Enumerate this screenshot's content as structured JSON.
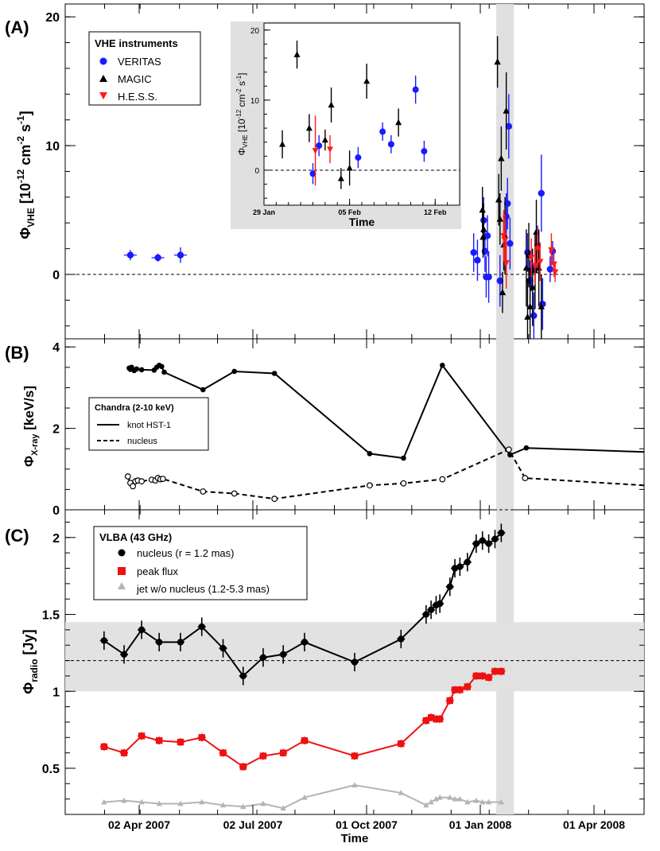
{
  "colors": {
    "veritas": "#1a1aff",
    "magic": "#000000",
    "hess": "#ff1a1a",
    "peak": "#ee1111",
    "jet": "#b4b4b4",
    "band": "#e0e0e0"
  },
  "panel_a": {
    "label": "(A)",
    "legend_title": "VHE instruments",
    "inset_xlabel": "Time",
    "inset_xticks": [
      "29 Jan",
      "05 Feb",
      "12 Feb"
    ]
  },
  "panel_b": {
    "label": "(B)",
    "legend_title": "Chandra (2-10 keV)",
    "legend_items": [
      "knot HST-1",
      "nucleus"
    ]
  },
  "panel_c": {
    "label": "(C)",
    "legend_title": "VLBA (43 GHz)",
    "legend_items": [
      "nucleus (r = 1.2 mas)",
      "peak flux",
      "jet w/o nucleus (1.2-5.3 mas)"
    ]
  },
  "x_axis": {
    "label": "Time",
    "range_days": [
      -77,
      70
    ],
    "tick_labels": [
      "02 Apr 2007",
      "02 Jul 2007",
      "01 Oct 2007",
      "01 Jan 2008",
      "01 Apr 2008"
    ],
    "highlight_band_days": [
      -48,
      -34
    ]
  },
  "chart_data": [
    {
      "type": "scatter",
      "panel": "A",
      "ylabel": "Φ_VHE [10^-12 cm^-2 s^-1]",
      "ylim": [
        -5,
        21
      ],
      "yticks": [
        0,
        10,
        20
      ],
      "reference_line": 0,
      "series": [
        {
          "name": "VERITAS",
          "marker": "circle",
          "points": [
            [
              -340,
              1.5,
              0.4
            ],
            [
              -318,
              1.3,
              0.3
            ],
            [
              -300,
              1.5,
              0.6
            ],
            [
              -66,
              1.7,
              1.5
            ],
            [
              -63,
              1.1,
              1.6
            ],
            [
              -58,
              4.2,
              1.8
            ],
            [
              -57,
              1.8,
              1.6
            ],
            [
              -56,
              -0.2,
              1.6
            ],
            [
              -55,
              3.0,
              1.6
            ],
            [
              -54,
              -0.2,
              2.0
            ],
            [
              -45,
              -0.5,
              2.0
            ],
            [
              -40,
              4.5,
              1.8
            ],
            [
              -39,
              5.5,
              2.0
            ],
            [
              -38,
              11.5,
              2.5
            ],
            [
              -37,
              2.4,
              2.0
            ],
            [
              -23,
              1.7,
              1.5
            ],
            [
              -21,
              -0.5,
              1.6
            ],
            [
              -20,
              0.3,
              1.6
            ],
            [
              -18,
              -3.2,
              1.8
            ],
            [
              -17,
              0.6,
              1.6
            ],
            [
              -15,
              2.2,
              1.6
            ],
            [
              -12,
              6.3,
              3.0
            ],
            [
              -11,
              -2.3,
              2.0
            ],
            [
              -5,
              0.4,
              1.0
            ],
            [
              -3,
              1.8,
              0.8
            ]
          ]
        },
        {
          "name": "MAGIC",
          "marker": "triangle-up",
          "points": [
            [
              -59,
              5.0,
              1.8
            ],
            [
              -58.5,
              2.9,
              1.6
            ],
            [
              -58,
              3.5,
              2.0
            ],
            [
              -47,
              16.5,
              2.0
            ],
            [
              -46,
              5.8,
              2.0
            ],
            [
              -45,
              4.3,
              2.0
            ],
            [
              -44,
              9.0,
              2.5
            ],
            [
              -43,
              -1.4,
              1.6
            ],
            [
              -42,
              2.3,
              2.0
            ],
            [
              -41,
              3.0,
              3.0
            ],
            [
              -40,
              12.7,
              3.0
            ],
            [
              -24,
              0.5,
              3.0
            ],
            [
              -23,
              -3.3,
              3.0
            ],
            [
              -22,
              1.5,
              2.5
            ],
            [
              -21,
              -2.5,
              3.0
            ],
            [
              -19,
              -1.0,
              3.0
            ],
            [
              -17,
              0.3,
              3.0
            ],
            [
              -16,
              3.3,
              2.5
            ],
            [
              -14,
              0.5,
              3.0
            ],
            [
              -12,
              -2.5,
              2.5
            ]
          ]
        },
        {
          "name": "H.E.S.S.",
          "marker": "triangle-down",
          "points": [
            [
              -42,
              3.0,
              2.0
            ],
            [
              -41,
              2.7,
              2.0
            ],
            [
              -40,
              0.9,
              2.0
            ],
            [
              -20,
              1.3,
              1.5
            ],
            [
              -17,
              0.7,
              1.5
            ],
            [
              -15,
              2.0,
              1.5
            ],
            [
              -13,
              1.0,
              1.5
            ],
            [
              -4,
              1.9,
              1.3
            ],
            [
              -2,
              0.8,
              1.0
            ],
            [
              -1,
              0.2,
              0.8
            ]
          ]
        }
      ]
    },
    {
      "type": "scatter",
      "panel": "A-inset",
      "ylabel": "Φ_VHE [10^-12 cm^-2 s^-1]",
      "ylim": [
        -5,
        21
      ],
      "yticks": [
        0,
        10,
        20
      ],
      "xlim_days": [
        -49,
        -33
      ],
      "reference_line": 0,
      "series": [
        {
          "name": "VERITAS",
          "marker": "circle",
          "points": [
            [
              -45.0,
              -0.5,
              1.5
            ],
            [
              -44.5,
              3.5,
              1.5
            ],
            [
              -41.3,
              1.8,
              1.5
            ],
            [
              -39.3,
              5.5,
              1.3
            ],
            [
              -38.6,
              3.7,
              1.3
            ],
            [
              -36.6,
              11.5,
              2.0
            ],
            [
              -35.9,
              2.7,
              1.5
            ]
          ]
        },
        {
          "name": "MAGIC",
          "marker": "triangle-up",
          "points": [
            [
              -47.5,
              3.7,
              2.0
            ],
            [
              -46.3,
              16.5,
              2.0
            ],
            [
              -45.3,
              6.0,
              2.0
            ],
            [
              -44.0,
              4.3,
              1.5
            ],
            [
              -43.5,
              9.3,
              2.5
            ],
            [
              -42.7,
              -1.2,
              1.5
            ],
            [
              -42.0,
              0.3,
              2.5
            ],
            [
              -40.6,
              12.7,
              2.5
            ],
            [
              -38.0,
              6.8,
              2.0
            ]
          ]
        },
        {
          "name": "H.E.S.S.",
          "marker": "triangle-down",
          "points": [
            [
              -44.8,
              2.8,
              5.0
            ],
            [
              -43.6,
              3.0,
              2.0
            ]
          ]
        }
      ]
    },
    {
      "type": "line",
      "panel": "B",
      "ylabel": "Φ_X-ray [keV/s]",
      "ylim": [
        0,
        4.2
      ],
      "yticks": [
        0,
        2,
        4
      ],
      "reference_line": 0,
      "series": [
        {
          "name": "knot HST-1",
          "style": "solid",
          "marker": "filled-circle",
          "points": [
            [
              -91,
              3.55
            ],
            [
              -341,
              3.48
            ],
            [
              -340,
              3.45
            ],
            [
              -339,
              3.5
            ],
            [
              -337,
              3.42
            ],
            [
              -335,
              3.46
            ],
            [
              -331,
              3.44
            ],
            [
              -321,
              3.43
            ],
            [
              -319,
              3.5
            ],
            [
              -317,
              3.55
            ],
            [
              -315,
              3.52
            ],
            [
              -313,
              3.38
            ],
            [
              -282,
              2.95
            ],
            [
              -257,
              3.4
            ],
            [
              -225,
              3.35
            ],
            [
              -149,
              1.38
            ],
            [
              -122,
              1.27
            ],
            [
              -37,
              1.35
            ],
            [
              -24,
              1.52
            ],
            [
              70,
              1.42
            ]
          ]
        },
        {
          "name": "nucleus",
          "style": "dashed",
          "marker": "open-circle",
          "points": [
            [
              -91,
              0.75
            ],
            [
              -342,
              0.82
            ],
            [
              -340,
              0.66
            ],
            [
              -338,
              0.58
            ],
            [
              -336,
              0.7
            ],
            [
              -334,
              0.72
            ],
            [
              -331,
              0.7
            ],
            [
              -323,
              0.74
            ],
            [
              -320,
              0.72
            ],
            [
              -318,
              0.78
            ],
            [
              -316,
              0.75
            ],
            [
              -314,
              0.76
            ],
            [
              -282,
              0.45
            ],
            [
              -257,
              0.4
            ],
            [
              -225,
              0.27
            ],
            [
              -149,
              0.6
            ],
            [
              -122,
              0.65
            ],
            [
              -38,
              1.48
            ],
            [
              -25,
              0.78
            ],
            [
              70,
              0.6
            ]
          ]
        }
      ]
    },
    {
      "type": "line",
      "panel": "C",
      "ylabel": "Φ_radio [Jy]",
      "ylim": [
        0.2,
        2.18
      ],
      "yticks": [
        0.5,
        1,
        1.5,
        2
      ],
      "reference_line": 1.2,
      "band": [
        1.0,
        1.45
      ],
      "series": [
        {
          "name": "nucleus (r = 1.2 mas)",
          "color_key": "magic",
          "marker": "circle",
          "points": [
            [
              -361,
              1.33
            ],
            [
              -345,
              1.24
            ],
            [
              -331,
              1.4
            ],
            [
              -317,
              1.32
            ],
            [
              -300,
              1.32
            ],
            [
              -283,
              1.42
            ],
            [
              -266,
              1.28
            ],
            [
              -250,
              1.1
            ],
            [
              -234,
              1.22
            ],
            [
              -218,
              1.24
            ],
            [
              -201,
              1.32
            ],
            [
              -161,
              1.19
            ],
            [
              -124,
              1.34
            ],
            [
              -104,
              1.5
            ],
            [
              -100,
              1.53
            ],
            [
              -96,
              1.56
            ],
            [
              -93,
              1.57
            ],
            [
              -85,
              1.68
            ],
            [
              -81,
              1.8
            ],
            [
              -77,
              1.81
            ],
            [
              -71,
              1.84
            ],
            [
              -64,
              1.96
            ],
            [
              -59,
              1.98
            ],
            [
              -54,
              1.96
            ],
            [
              -49,
              1.99
            ],
            [
              -44,
              2.03
            ]
          ]
        },
        {
          "name": "peak flux",
          "color_key": "peak",
          "marker": "square",
          "points": [
            [
              -361,
              0.64
            ],
            [
              -345,
              0.6
            ],
            [
              -331,
              0.71
            ],
            [
              -317,
              0.68
            ],
            [
              -300,
              0.67
            ],
            [
              -283,
              0.7
            ],
            [
              -266,
              0.6
            ],
            [
              -250,
              0.51
            ],
            [
              -234,
              0.58
            ],
            [
              -218,
              0.6
            ],
            [
              -201,
              0.68
            ],
            [
              -161,
              0.58
            ],
            [
              -124,
              0.66
            ],
            [
              -104,
              0.81
            ],
            [
              -100,
              0.83
            ],
            [
              -96,
              0.82
            ],
            [
              -93,
              0.82
            ],
            [
              -85,
              0.94
            ],
            [
              -81,
              1.01
            ],
            [
              -77,
              1.01
            ],
            [
              -71,
              1.03
            ],
            [
              -64,
              1.1
            ],
            [
              -59,
              1.1
            ],
            [
              -54,
              1.09
            ],
            [
              -49,
              1.13
            ],
            [
              -44,
              1.13
            ]
          ]
        },
        {
          "name": "jet w/o nucleus (1.2-5.3 mas)",
          "color_key": "jet",
          "marker": "triangle-up",
          "points": [
            [
              -361,
              0.28
            ],
            [
              -345,
              0.29
            ],
            [
              -331,
              0.28
            ],
            [
              -317,
              0.27
            ],
            [
              -300,
              0.27
            ],
            [
              -283,
              0.28
            ],
            [
              -266,
              0.26
            ],
            [
              -250,
              0.25
            ],
            [
              -234,
              0.27
            ],
            [
              -218,
              0.24
            ],
            [
              -201,
              0.31
            ],
            [
              -161,
              0.39
            ],
            [
              -124,
              0.34
            ],
            [
              -104,
              0.26
            ],
            [
              -100,
              0.28
            ],
            [
              -96,
              0.3
            ],
            [
              -93,
              0.31
            ],
            [
              -85,
              0.31
            ],
            [
              -81,
              0.3
            ],
            [
              -77,
              0.3
            ],
            [
              -71,
              0.28
            ],
            [
              -64,
              0.29
            ],
            [
              -59,
              0.28
            ],
            [
              -54,
              0.28
            ],
            [
              -44,
              0.28
            ]
          ]
        }
      ]
    }
  ]
}
